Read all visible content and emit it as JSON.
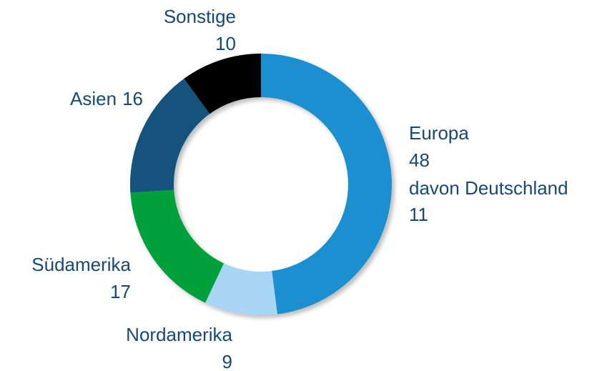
{
  "chart_data": {
    "type": "donut",
    "categories": [
      "Europa",
      "Nordamerika",
      "Südamerika",
      "Asien",
      "Sonstige"
    ],
    "values": [
      48,
      9,
      17,
      16,
      10
    ],
    "colors": [
      "#1a8fd0",
      "#a7d5f3",
      "#00a03c",
      "#12527b",
      "#000000"
    ],
    "annotation": {
      "label": "davon Deutschland",
      "value": 11
    }
  }
}
